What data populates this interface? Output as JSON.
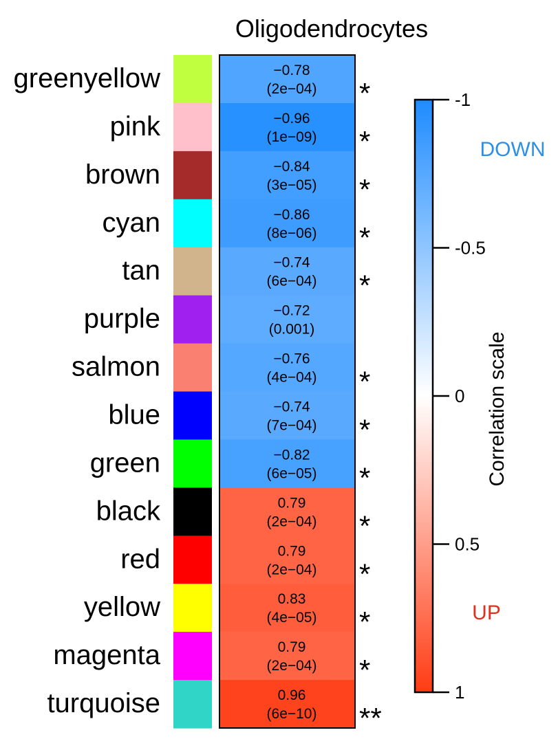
{
  "chart_data": {
    "type": "heatmap",
    "title": "Oligodendrocytes",
    "rows": [
      {
        "module": "greenyellow",
        "swatch": "#bfff3f",
        "r": -0.78,
        "r_label": "−0.78",
        "p_label": "(2e−04)",
        "sig": "*"
      },
      {
        "module": "pink",
        "swatch": "#ffc0cb",
        "r": -0.96,
        "r_label": "−0.96",
        "p_label": "(1e−09)",
        "sig": "*"
      },
      {
        "module": "brown",
        "swatch": "#a52a2a",
        "r": -0.84,
        "r_label": "−0.84",
        "p_label": "(3e−05)",
        "sig": "*"
      },
      {
        "module": "cyan",
        "swatch": "#00ffff",
        "r": -0.86,
        "r_label": "−0.86",
        "p_label": "(8e−06)",
        "sig": "*"
      },
      {
        "module": "tan",
        "swatch": "#d2b48c",
        "r": -0.74,
        "r_label": "−0.74",
        "p_label": "(6e−04)",
        "sig": "*"
      },
      {
        "module": "purple",
        "swatch": "#a020f0",
        "r": -0.72,
        "r_label": "−0.72",
        "p_label": "(0.001)",
        "sig": ""
      },
      {
        "module": "salmon",
        "swatch": "#fa8072",
        "r": -0.76,
        "r_label": "−0.76",
        "p_label": "(4e−04)",
        "sig": "*"
      },
      {
        "module": "blue",
        "swatch": "#0000ff",
        "r": -0.74,
        "r_label": "−0.74",
        "p_label": "(7e−04)",
        "sig": "*"
      },
      {
        "module": "green",
        "swatch": "#00ff00",
        "r": -0.82,
        "r_label": "−0.82",
        "p_label": "(6e−05)",
        "sig": "*"
      },
      {
        "module": "black",
        "swatch": "#000000",
        "r": 0.79,
        "r_label": "0.79",
        "p_label": "(2e−04)",
        "sig": "*"
      },
      {
        "module": "red",
        "swatch": "#ff0000",
        "r": 0.79,
        "r_label": "0.79",
        "p_label": "(2e−04)",
        "sig": "*"
      },
      {
        "module": "yellow",
        "swatch": "#ffff00",
        "r": 0.83,
        "r_label": "0.83",
        "p_label": "(4e−05)",
        "sig": "*"
      },
      {
        "module": "magenta",
        "swatch": "#ff00ff",
        "r": 0.79,
        "r_label": "0.79",
        "p_label": "(2e−04)",
        "sig": "*"
      },
      {
        "module": "turquoise",
        "swatch": "#30d5c8",
        "r": 0.96,
        "r_label": "0.96",
        "p_label": "(6e−10)",
        "sig": "**"
      }
    ],
    "colorbar": {
      "label": "Correlation scale",
      "range": [
        -1,
        1
      ],
      "ticks": [
        {
          "value": -1,
          "label": "-1"
        },
        {
          "value": -0.5,
          "label": "-0.5"
        },
        {
          "value": 0,
          "label": "0"
        },
        {
          "value": 0.5,
          "label": "0.5"
        },
        {
          "value": 1,
          "label": "1"
        }
      ],
      "low_color": "#1e8cff",
      "mid_color": "#ffffff",
      "high_color": "#ff3c14"
    },
    "direction_labels": {
      "down": {
        "text": "DOWN",
        "color": "#2d8fe6"
      },
      "up": {
        "text": "UP",
        "color": "#e0301e"
      }
    }
  }
}
